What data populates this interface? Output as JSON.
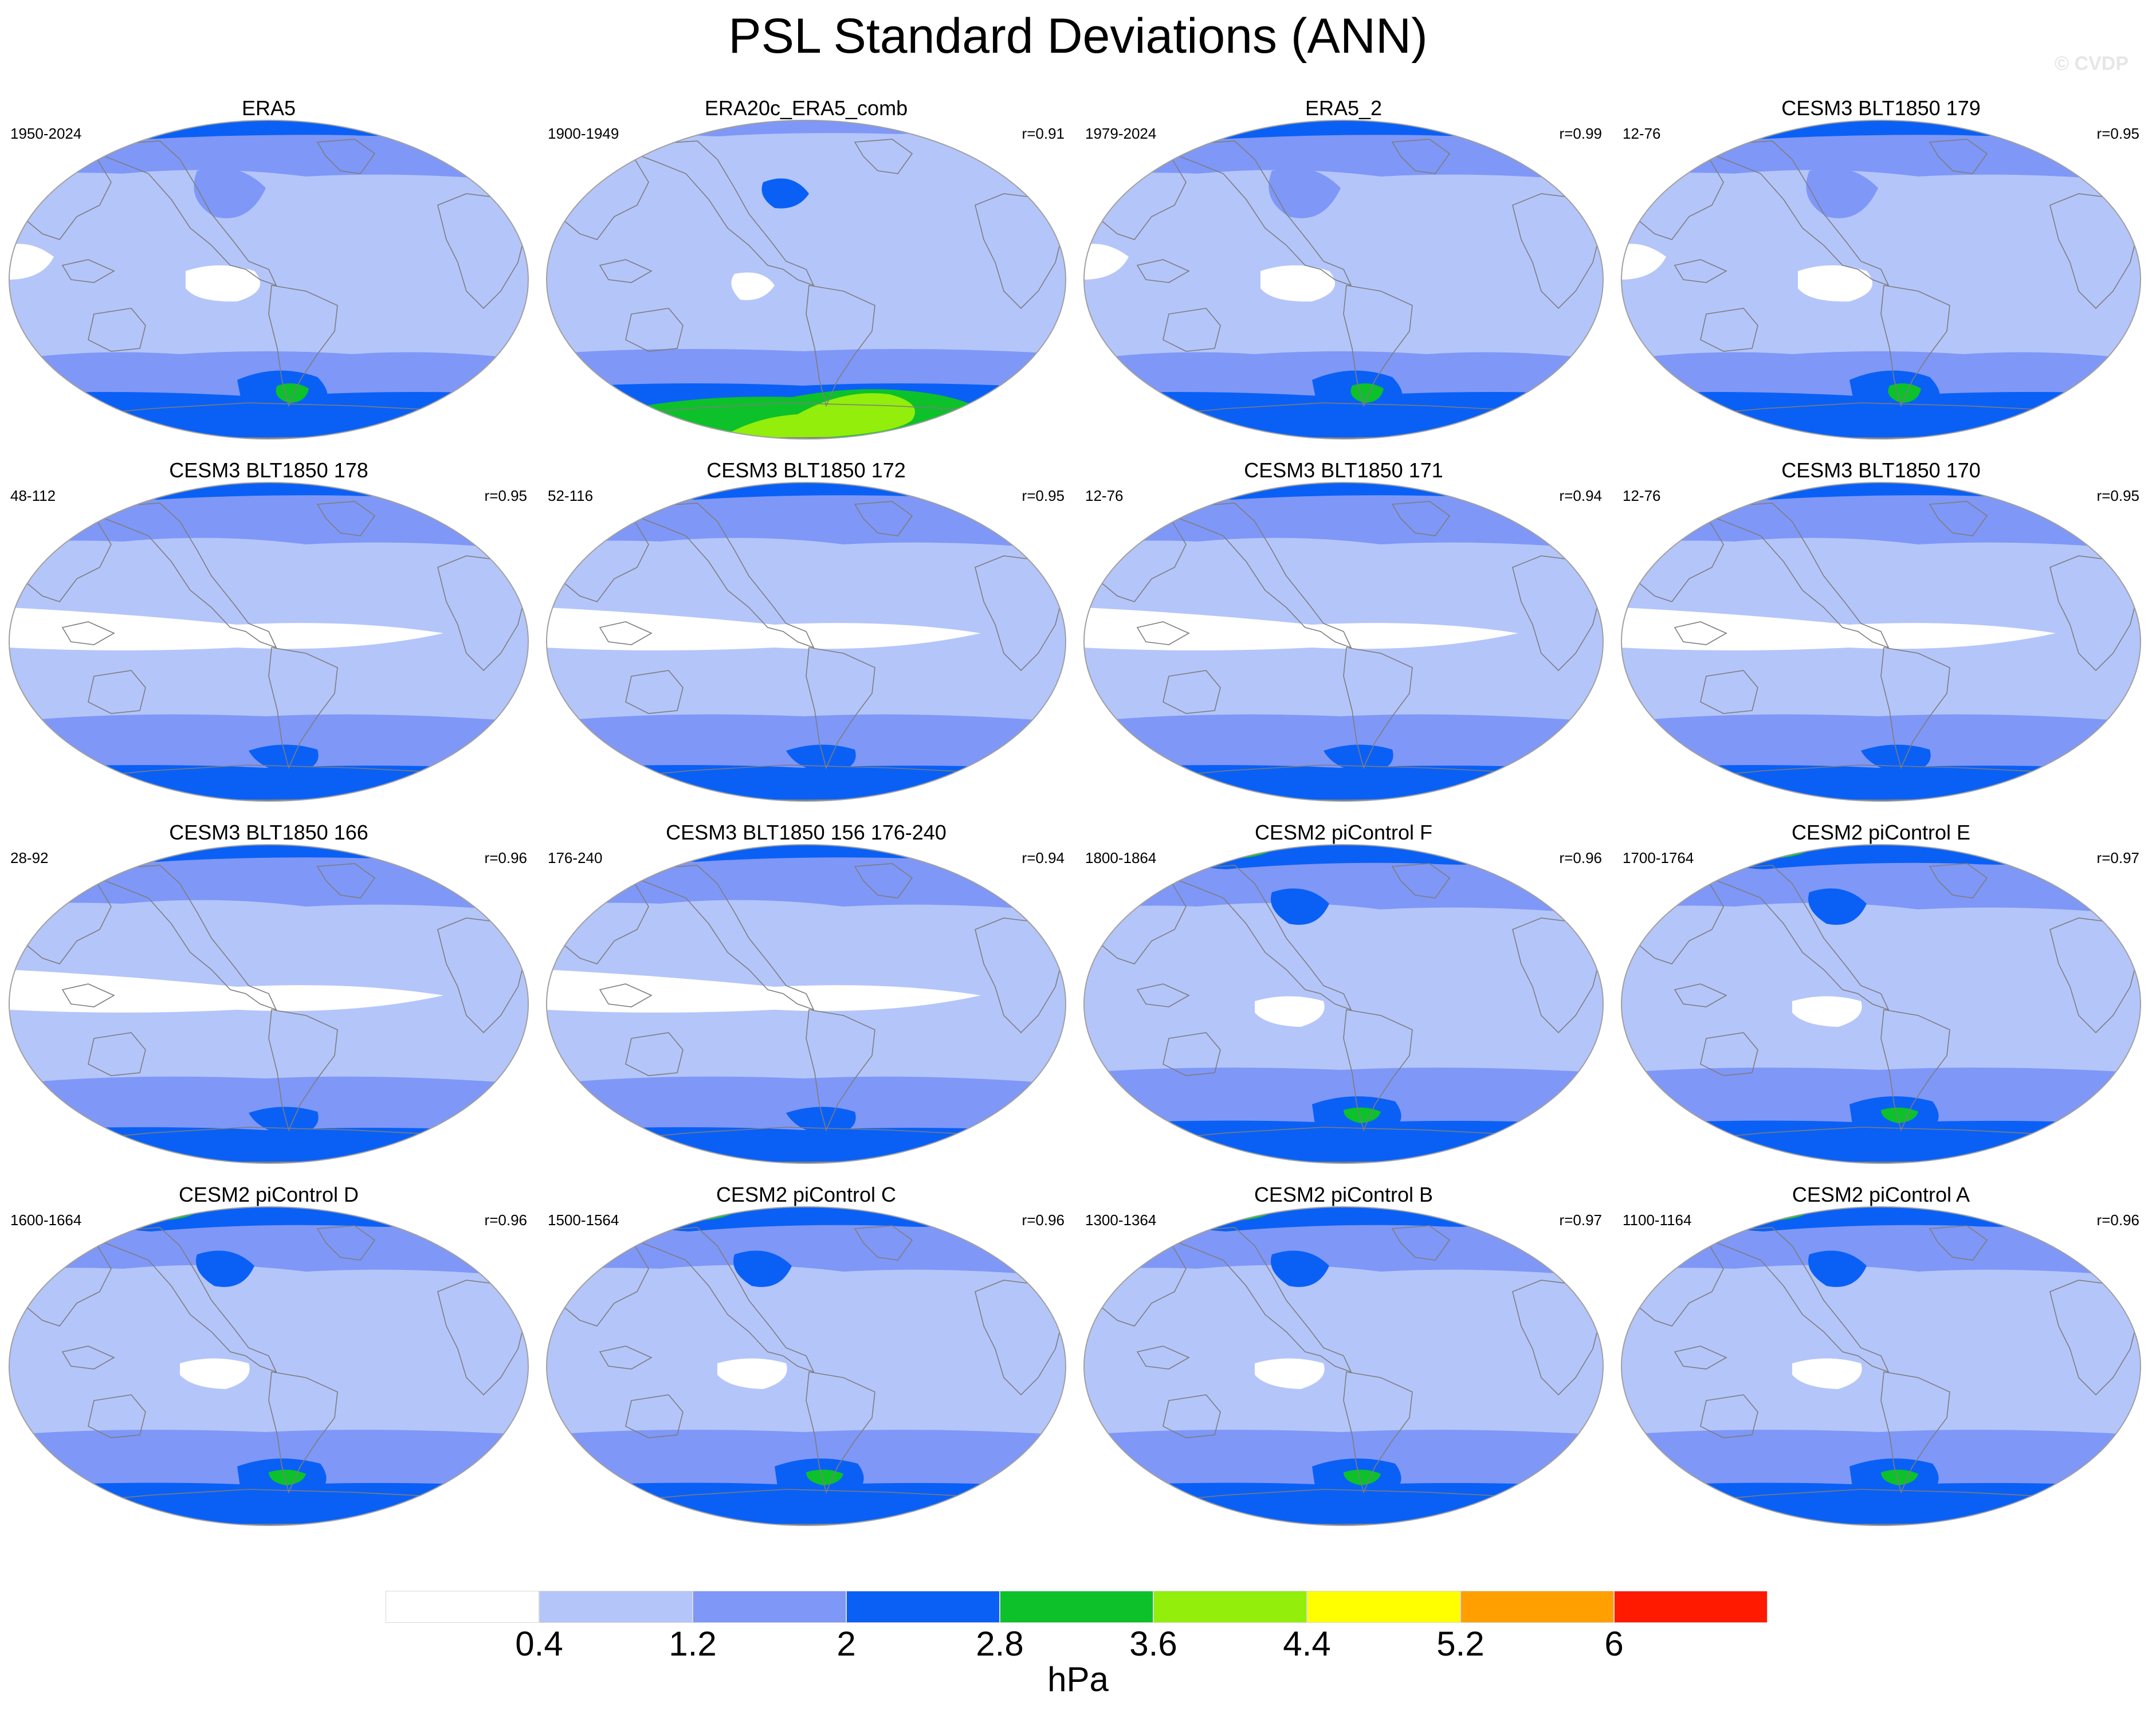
{
  "title": "PSL Standard Deviations (ANN)",
  "credit": "© CVDP",
  "colors": {
    "levels": [
      "#ffffff",
      "#b4c5fa",
      "#7f97f7",
      "#0a60f5",
      "#0dc12a",
      "#92ee0a",
      "#ffff00",
      "#ffa000",
      "#ff1a00"
    ],
    "coast": "#7d7d7d",
    "outline": "#a0a0a0"
  },
  "colorbar": {
    "ticks": [
      "0.4",
      "1.2",
      "2",
      "2.8",
      "3.6",
      "4.4",
      "5.2",
      "6"
    ],
    "unit": "hPa"
  },
  "panels": [
    {
      "title": "ERA5",
      "period": "1950-2024",
      "r": "",
      "variant": 1
    },
    {
      "title": "ERA20c_ERA5_comb",
      "period": "1900-1949",
      "r": "r=0.91",
      "variant": 2
    },
    {
      "title": "ERA5_2",
      "period": "1979-2024",
      "r": "r=0.99",
      "variant": 1
    },
    {
      "title": "CESM3 BLT1850 179",
      "period": "12-76",
      "r": "r=0.95",
      "variant": 1
    },
    {
      "title": "CESM3 BLT1850 178",
      "period": "48-112",
      "r": "r=0.95",
      "variant": 3
    },
    {
      "title": "CESM3 BLT1850 172",
      "period": "52-116",
      "r": "r=0.95",
      "variant": 3
    },
    {
      "title": "CESM3 BLT1850 171",
      "period": "12-76",
      "r": "r=0.94",
      "variant": 3
    },
    {
      "title": "CESM3 BLT1850 170",
      "period": "12-76",
      "r": "r=0.95",
      "variant": 3
    },
    {
      "title": "CESM3 BLT1850 166",
      "period": "28-92",
      "r": "r=0.96",
      "variant": 3
    },
    {
      "title": "CESM3 BLT1850 156 176-240",
      "period": "176-240",
      "r": "r=0.94",
      "variant": 3
    },
    {
      "title": "CESM2 piControl F",
      "period": "1800-1864",
      "r": "r=0.96",
      "variant": 4
    },
    {
      "title": "CESM2 piControl E",
      "period": "1700-1764",
      "r": "r=0.97",
      "variant": 4
    },
    {
      "title": "CESM2 piControl D",
      "period": "1600-1664",
      "r": "r=0.96",
      "variant": 4
    },
    {
      "title": "CESM2 piControl C",
      "period": "1500-1564",
      "r": "r=0.96",
      "variant": 4
    },
    {
      "title": "CESM2 piControl B",
      "period": "1300-1364",
      "r": "r=0.97",
      "variant": 4
    },
    {
      "title": "CESM2 piControl A",
      "period": "1100-1164",
      "r": "r=0.96",
      "variant": 4
    }
  ]
}
